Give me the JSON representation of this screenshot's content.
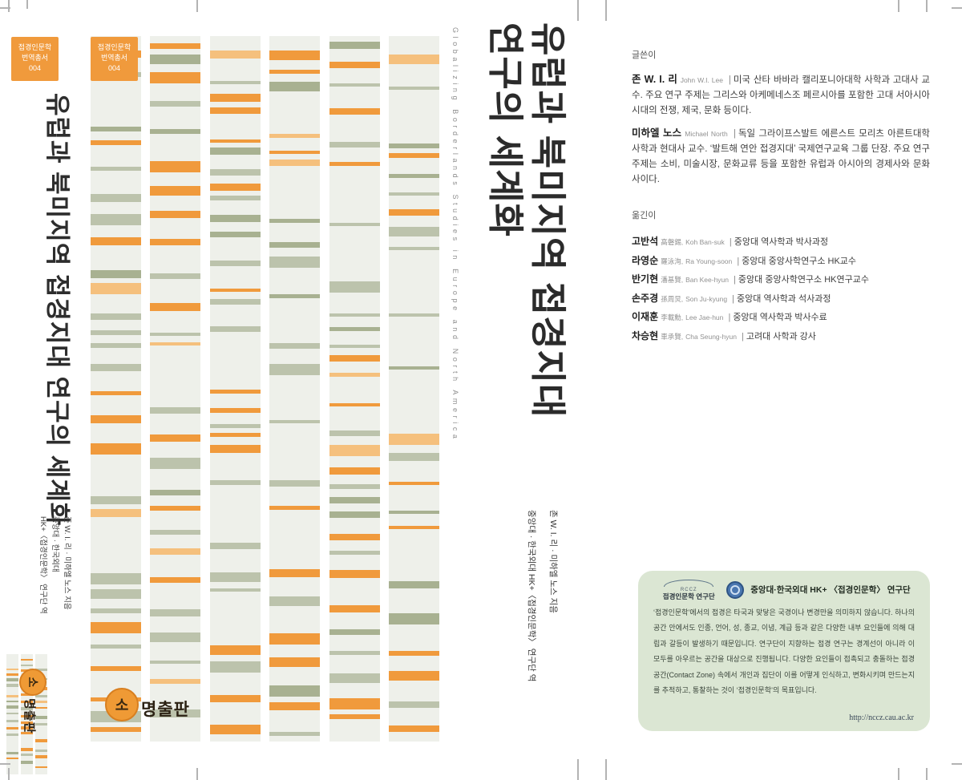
{
  "palette": {
    "orange": "#f09a3c",
    "orange_light": "#f5c07d",
    "sage": "#bcc3ac",
    "sage_dark": "#a8b191",
    "column_bg": "#eef0ea",
    "badge": "#f09a3c",
    "box_bg": "#dbe6d3",
    "emblem_blue": "#4a77b0"
  },
  "series_badge": {
    "line1": "접경인문학",
    "line2": "번역총서",
    "line3": "004"
  },
  "spine": {
    "title": "유럽과 북미지역 접경지대 연구의 세계화",
    "authors_line1": "존 W. I. 리 · 미하엘 노스 지음",
    "authors_line2": "중앙대 · 한국외대",
    "authors_line3": "HK+〈접경인문학〉 연구단 역"
  },
  "front": {
    "english_title": "Globalizing Borderlands Studies in Europe and North America",
    "title_line1": "유럽과 북미지역 접경지대",
    "title_line2": "연구의 세계화",
    "authors_line1": "존 W. I. 리 · 미하엘 노스 지음",
    "authors_line2": "중앙대 · 한국외대 HK+〈접경인문학〉 연구단 역",
    "publisher_mark": "소",
    "publisher_name": "명출판"
  },
  "back": {
    "sep": "|",
    "writers_heading": "글쓴이",
    "writers": [
      {
        "name": "존 W. I. 리",
        "roman": "John W.I. Lee",
        "bio": "미국 산타 바바라 캘리포니아대학 사학과 고대사 교수. 주요 연구 주제는 그리스와 아케메네스조 페르시아를 포함한 고대 서아시아 시대의 전쟁, 제국, 문화 등이다."
      },
      {
        "name": "미하엘 노스",
        "roman": "Michael North",
        "bio": "독일 그라이프스발트 에른스트 모리츠 아른트대학 사학과 현대사 교수. ‘발트해 연안 접경지대’ 국제연구교육 그룹 단장. 주요 연구 주제는 소비, 미술시장, 문화교류 등을 포함한 유럽과 아시아의 경제사와 문화사이다."
      }
    ],
    "translators_heading": "옮긴이",
    "translators": [
      {
        "name": "고반석",
        "hanja": "高磐錫,",
        "roman": "Koh Ban-suk",
        "info": "중앙대 역사학과 박사과정"
      },
      {
        "name": "라영순",
        "hanja": "羅泳洵,",
        "roman": "Ra Young-soon",
        "info": "중앙대 중앙사학연구소 HK교수"
      },
      {
        "name": "반기현",
        "hanja": "潘基賢,",
        "roman": "Ban Kee-hyun",
        "info": "중앙대 중앙사학연구소 HK연구교수"
      },
      {
        "name": "손주경",
        "hanja": "孫周炅,",
        "roman": "Son Ju-kyung",
        "info": "중앙대 역사학과 석사과정"
      },
      {
        "name": "이재훈",
        "hanja": "李載勳,",
        "roman": "Lee Jae-hun",
        "info": "중앙대 역사학과 박사수료"
      },
      {
        "name": "차승현",
        "hanja": "車承賢,",
        "roman": "Cha Seung-hyun",
        "info": "고려대 사학과 강사"
      }
    ],
    "research_box": {
      "logo_code": "RCCZ",
      "logo_label": "접경인문학 연구단",
      "title": "중앙대·한국외대 HK+ 〈접경인문학〉 연구단",
      "body": "‘접경인문학’에서의 접경은 타국과 맞닿은 국경이나 변경만을 의미하지 않습니다. 하나의 공간 안에서도 인종, 언어, 성, 종교, 이념, 계급 등과 같은 다양한 내부 요인들에 의해 대립과 갈등이 발생하기 때문입니다. 연구단이 지향하는 접경 연구는 경계선이 아니라 이 모두를 아우르는 공간을 대상으로 진행됩니다. 다양한 요인들이 접촉되고 충돌하는 접경 공간(Contact Zone) 속에서 개인과 집단이 이를 어떻게 인식하고, 변화시키며 만드는지를 추적하고, 통찰하는 것이 ‘접경인문학’의 목표입니다.",
      "url": "http://nccz.cau.ac.kr"
    }
  }
}
